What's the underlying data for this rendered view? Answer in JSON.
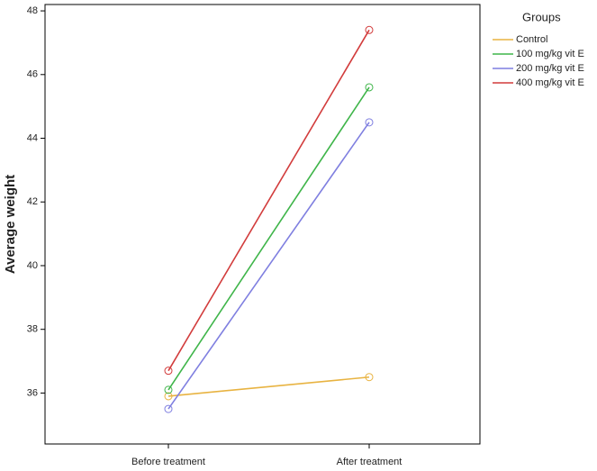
{
  "chart_data": {
    "type": "line",
    "y_label": "Average weight",
    "categories": [
      "Before treatment",
      "After treatment"
    ],
    "series": [
      {
        "name": "Control",
        "color": "#e8b341",
        "values": [
          35.9,
          36.5
        ]
      },
      {
        "name": "100 mg/kg vit E",
        "color": "#3fb54a",
        "values": [
          36.1,
          45.6
        ]
      },
      {
        "name": "200 mg/kg vit E",
        "color": "#7f7fe0",
        "values": [
          35.5,
          44.5
        ]
      },
      {
        "name": "400 mg/kg vit E",
        "color": "#d23c3c",
        "values": [
          36.7,
          47.4
        ]
      }
    ],
    "legend_title": "Groups",
    "legend": "right",
    "ylim": [
      34.4,
      48.2
    ],
    "yticks": [
      36,
      38,
      40,
      42,
      44,
      46,
      48
    ]
  }
}
